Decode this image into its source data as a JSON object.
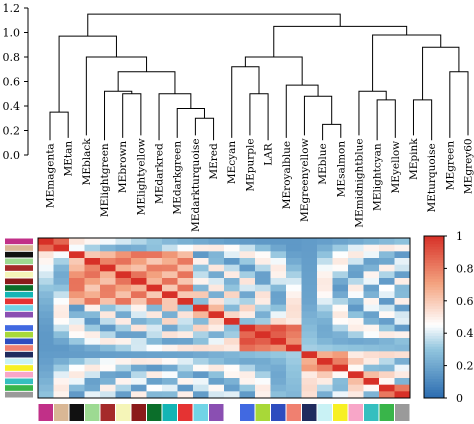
{
  "chart_data": [
    {
      "type": "dendrogram",
      "ylim": [
        0,
        1.2
      ],
      "yticks": [
        "0.0",
        "0.2",
        "0.4",
        "0.6",
        "0.8",
        "1.0",
        "1.2"
      ],
      "leaves": [
        "MEmagenta",
        "MEtan",
        "MEblack",
        "MElightgreen",
        "MEbrown",
        "MElightyellow",
        "MEdarkred",
        "MEdarkgreen",
        "MEdarkturquoise",
        "MEred",
        "MEcyan",
        "MEpurple",
        "LAR",
        "MEroyalblue",
        "MEgreenyellow",
        "MEblue",
        "MEsalmon",
        "MEmidnightblue",
        "MElightcyan",
        "MEyellow",
        "MEpink",
        "MEturquoise",
        "MEgreen",
        "MEgrey60"
      ],
      "merges": [
        {
          "a": "L0",
          "b": "L1",
          "h": 0.35
        },
        {
          "a": "L4",
          "b": "L5",
          "h": 0.5
        },
        {
          "a": "L3",
          "b": "M1",
          "h": 0.52
        },
        {
          "a": "L8",
          "b": "L9",
          "h": 0.3
        },
        {
          "a": "L7",
          "b": "M3",
          "h": 0.38
        },
        {
          "a": "L6",
          "b": "M4",
          "h": 0.5
        },
        {
          "a": "M2",
          "b": "M5",
          "h": 0.68
        },
        {
          "a": "L2",
          "b": "M6",
          "h": 0.8
        },
        {
          "a": "M0",
          "b": "M7",
          "h": 0.97
        },
        {
          "a": "L11",
          "b": "L12",
          "h": 0.5
        },
        {
          "a": "L10",
          "b": "M9",
          "h": 0.72
        },
        {
          "a": "L15",
          "b": "L16",
          "h": 0.25
        },
        {
          "a": "L14",
          "b": "M11",
          "h": 0.48
        },
        {
          "a": "L13",
          "b": "M12",
          "h": 0.57
        },
        {
          "a": "M10",
          "b": "M13",
          "h": 0.8
        },
        {
          "a": "L18",
          "b": "L19",
          "h": 0.45
        },
        {
          "a": "L17",
          "b": "M15",
          "h": 0.52
        },
        {
          "a": "L20",
          "b": "L21",
          "h": 0.45
        },
        {
          "a": "L22",
          "b": "L23",
          "h": 0.68
        },
        {
          "a": "M17",
          "b": "M18",
          "h": 0.88
        },
        {
          "a": "M16",
          "b": "M19",
          "h": 0.98
        },
        {
          "a": "M14",
          "b": "M20",
          "h": 1.05
        },
        {
          "a": "M8",
          "b": "M21",
          "h": 1.15
        }
      ]
    },
    {
      "type": "heatmap",
      "zlim": [
        0,
        1
      ],
      "colorbar_ticks": [
        "0",
        "0.2",
        "0.4",
        "0.6",
        "0.8",
        "1"
      ],
      "colors": [
        "#C13088",
        "#D9B795",
        "#111111",
        "#9DDA92",
        "#A52A2A",
        "#F5F5B8",
        "#8B1A1A",
        "#0B6E2A",
        "#13B5B5",
        "#E53333",
        "#71D4E6",
        "#8A4FB2",
        "#FFFFFF",
        "#4169E1",
        "#A8D838",
        "#2E4DBF",
        "#F08070",
        "#1F2B5E",
        "#C9F2F5",
        "#F7F024",
        "#F8A6C8",
        "#35BFBF",
        "#39B54A",
        "#9A9A9A"
      ],
      "block_groups": [
        {
          "start": 0,
          "end": 1,
          "value": 0.78
        },
        {
          "start": 2,
          "end": 9,
          "value": 0.72
        },
        {
          "start": 10,
          "end": 11,
          "value": 0.62
        },
        {
          "start": 13,
          "end": 16,
          "value": 0.8
        },
        {
          "start": 17,
          "end": 19,
          "value": 0.7
        },
        {
          "start": 20,
          "end": 21,
          "value": 0.7
        },
        {
          "start": 22,
          "end": 23,
          "value": 0.72
        }
      ]
    }
  ]
}
